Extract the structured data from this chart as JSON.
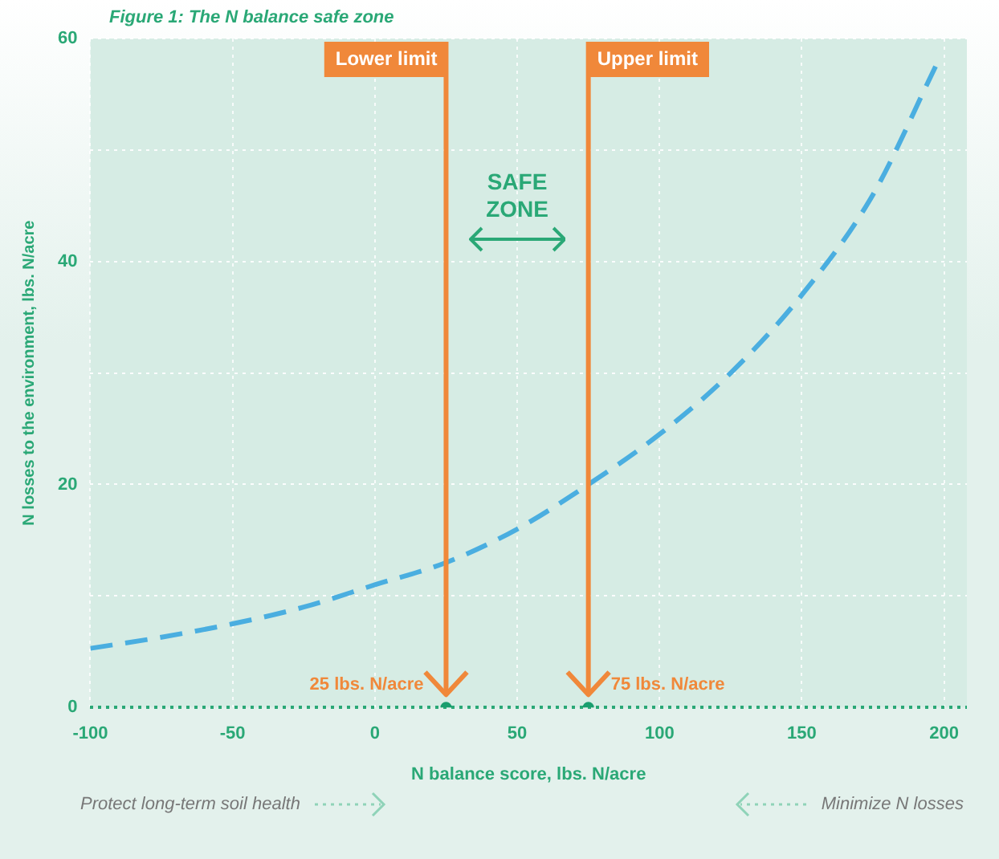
{
  "chart_data": {
    "type": "line",
    "title": "Figure 1: The N balance safe zone",
    "xlabel": "N balance score, lbs. N/acre",
    "ylabel": "N losses to the environment, lbs. N/acre",
    "x": [
      -100,
      -75,
      -50,
      -25,
      0,
      25,
      50,
      75,
      100,
      125,
      150,
      175,
      197
    ],
    "series": [
      {
        "color": "#4aaee0",
        "line_style": "dashed",
        "marker": "none",
        "values": [
          5.3,
          6.3,
          7.5,
          9,
          11,
          13,
          16,
          20,
          24.5,
          30,
          37,
          46,
          57.5
        ]
      },
      {
        "type": "scatter",
        "color": "#1a9e6e",
        "marker": "circle",
        "x": [
          25,
          75
        ],
        "values": [
          0,
          0
        ]
      }
    ],
    "xlim": [
      -100,
      208
    ],
    "xticks": [
      -100,
      -50,
      0,
      50,
      100,
      150,
      200
    ],
    "ylim": [
      0,
      60
    ],
    "yticks": [
      0,
      {
        "value": 10,
        "label": null
      },
      20,
      {
        "value": 30,
        "label": null
      },
      40,
      {
        "value": 50,
        "label": null
      },
      60
    ],
    "grid": true,
    "legend": false,
    "ref_lines": [
      {
        "axis": "x",
        "value": 25,
        "label": "Lower limit",
        "color": "#f0883a"
      },
      {
        "axis": "x",
        "value": 75,
        "label": "Upper limit",
        "color": "#f0883a"
      }
    ],
    "annotations": [
      {
        "text": "25 lbs. N/acre",
        "x": 25,
        "y": 2
      },
      {
        "text": "75 lbs. N/acre",
        "x": 75,
        "y": 2
      },
      "SAFE ZONE",
      "Protect long-term soil health",
      "Minimize N losses"
    ]
  }
}
